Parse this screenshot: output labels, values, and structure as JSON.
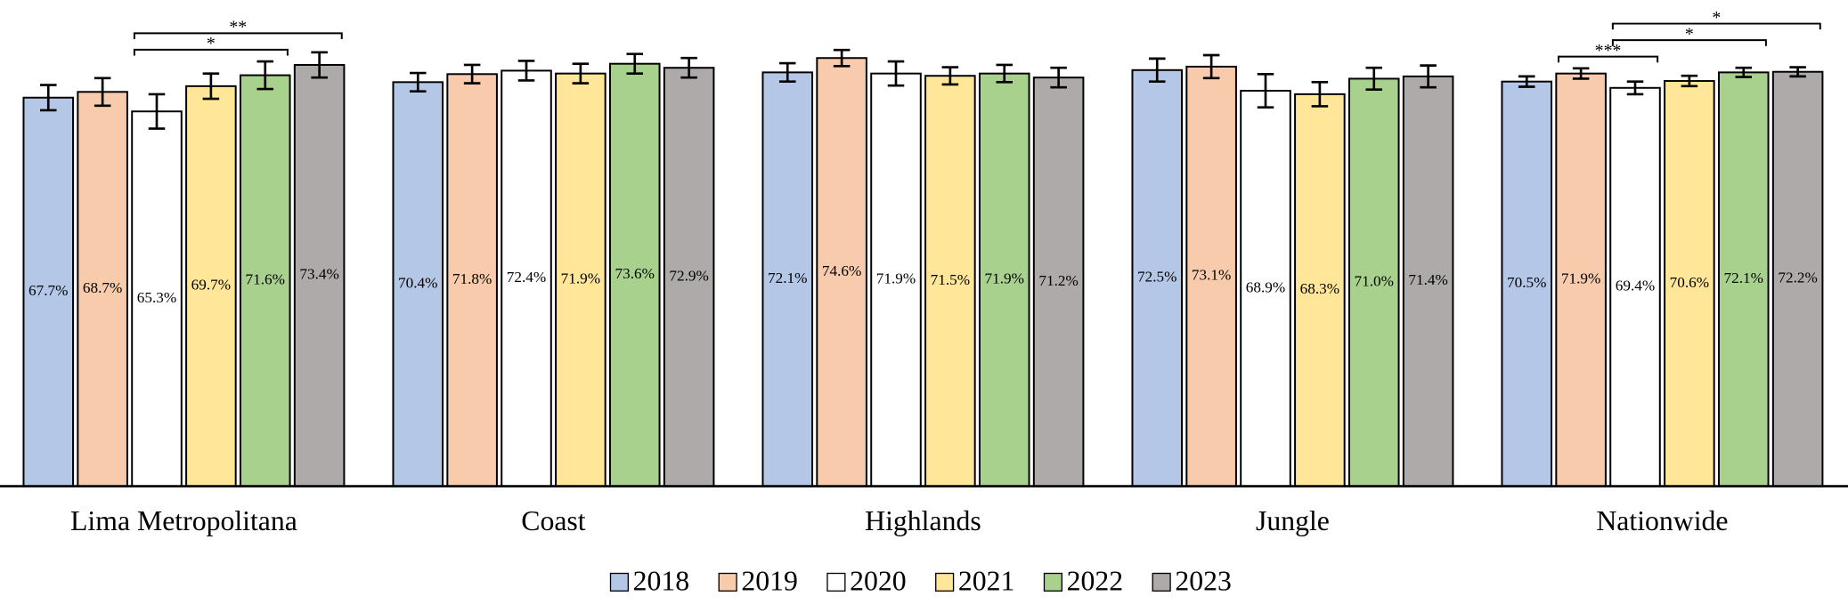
{
  "chart_data": {
    "type": "bar",
    "categories": [
      "Lima Metropolitana",
      "Coast",
      "Highlands",
      "Jungle",
      "Nationwide"
    ],
    "series": [
      {
        "name": "2018",
        "color": "#b4c7e7",
        "values": [
          67.7,
          70.4,
          72.1,
          72.5,
          70.5
        ],
        "errors": [
          2.2,
          1.6,
          1.6,
          2.0,
          0.9
        ],
        "value_labels": [
          "67.7%",
          "70.4%",
          "72.1%",
          "72.5%",
          "70.5%"
        ]
      },
      {
        "name": "2019",
        "color": "#f8cbad",
        "values": [
          68.7,
          71.8,
          74.6,
          73.1,
          71.9
        ],
        "errors": [
          2.4,
          1.6,
          1.4,
          2.0,
          0.9
        ],
        "value_labels": [
          "68.7%",
          "71.8%",
          "74.6%",
          "73.1%",
          "71.9%"
        ]
      },
      {
        "name": "2020",
        "color": "#ffffff",
        "values": [
          65.3,
          72.4,
          71.9,
          68.9,
          69.4
        ],
        "errors": [
          3.0,
          1.7,
          2.1,
          2.9,
          1.1
        ],
        "value_labels": [
          "65.3%",
          "72.4%",
          "71.9%",
          "68.9%",
          "69.4%"
        ]
      },
      {
        "name": "2021",
        "color": "#ffe699",
        "values": [
          69.7,
          71.9,
          71.5,
          68.3,
          70.6
        ],
        "errors": [
          2.2,
          1.7,
          1.5,
          2.1,
          0.9
        ],
        "value_labels": [
          "69.7%",
          "71.9%",
          "71.5%",
          "68.3%",
          "70.6%"
        ]
      },
      {
        "name": "2022",
        "color": "#a9d18e",
        "values": [
          71.6,
          73.6,
          71.9,
          71.0,
          72.1
        ],
        "errors": [
          2.4,
          1.7,
          1.5,
          1.9,
          0.8
        ],
        "value_labels": [
          "71.6%",
          "73.6%",
          "71.9%",
          "71.0%",
          "72.1%"
        ]
      },
      {
        "name": "2023",
        "color": "#aeaaaa",
        "values": [
          73.4,
          72.9,
          71.2,
          71.4,
          72.2
        ],
        "errors": [
          2.2,
          1.7,
          1.7,
          1.9,
          0.8
        ],
        "value_labels": [
          "73.4%",
          "72.9%",
          "71.2%",
          "71.4%",
          "72.2%"
        ]
      }
    ],
    "ylim": [
      0,
      84.7
    ],
    "significance": [
      {
        "group": 0,
        "from": 2,
        "to": 4,
        "label": "*"
      },
      {
        "group": 0,
        "from": 2,
        "to": 5,
        "label": "**"
      },
      {
        "group": 4,
        "from": 1,
        "to": 2,
        "label": "***"
      },
      {
        "group": 4,
        "from": 2,
        "to": 4,
        "label": "*"
      },
      {
        "group": 4,
        "from": 2,
        "to": 5,
        "label": "*"
      }
    ],
    "legend": "bottom"
  }
}
